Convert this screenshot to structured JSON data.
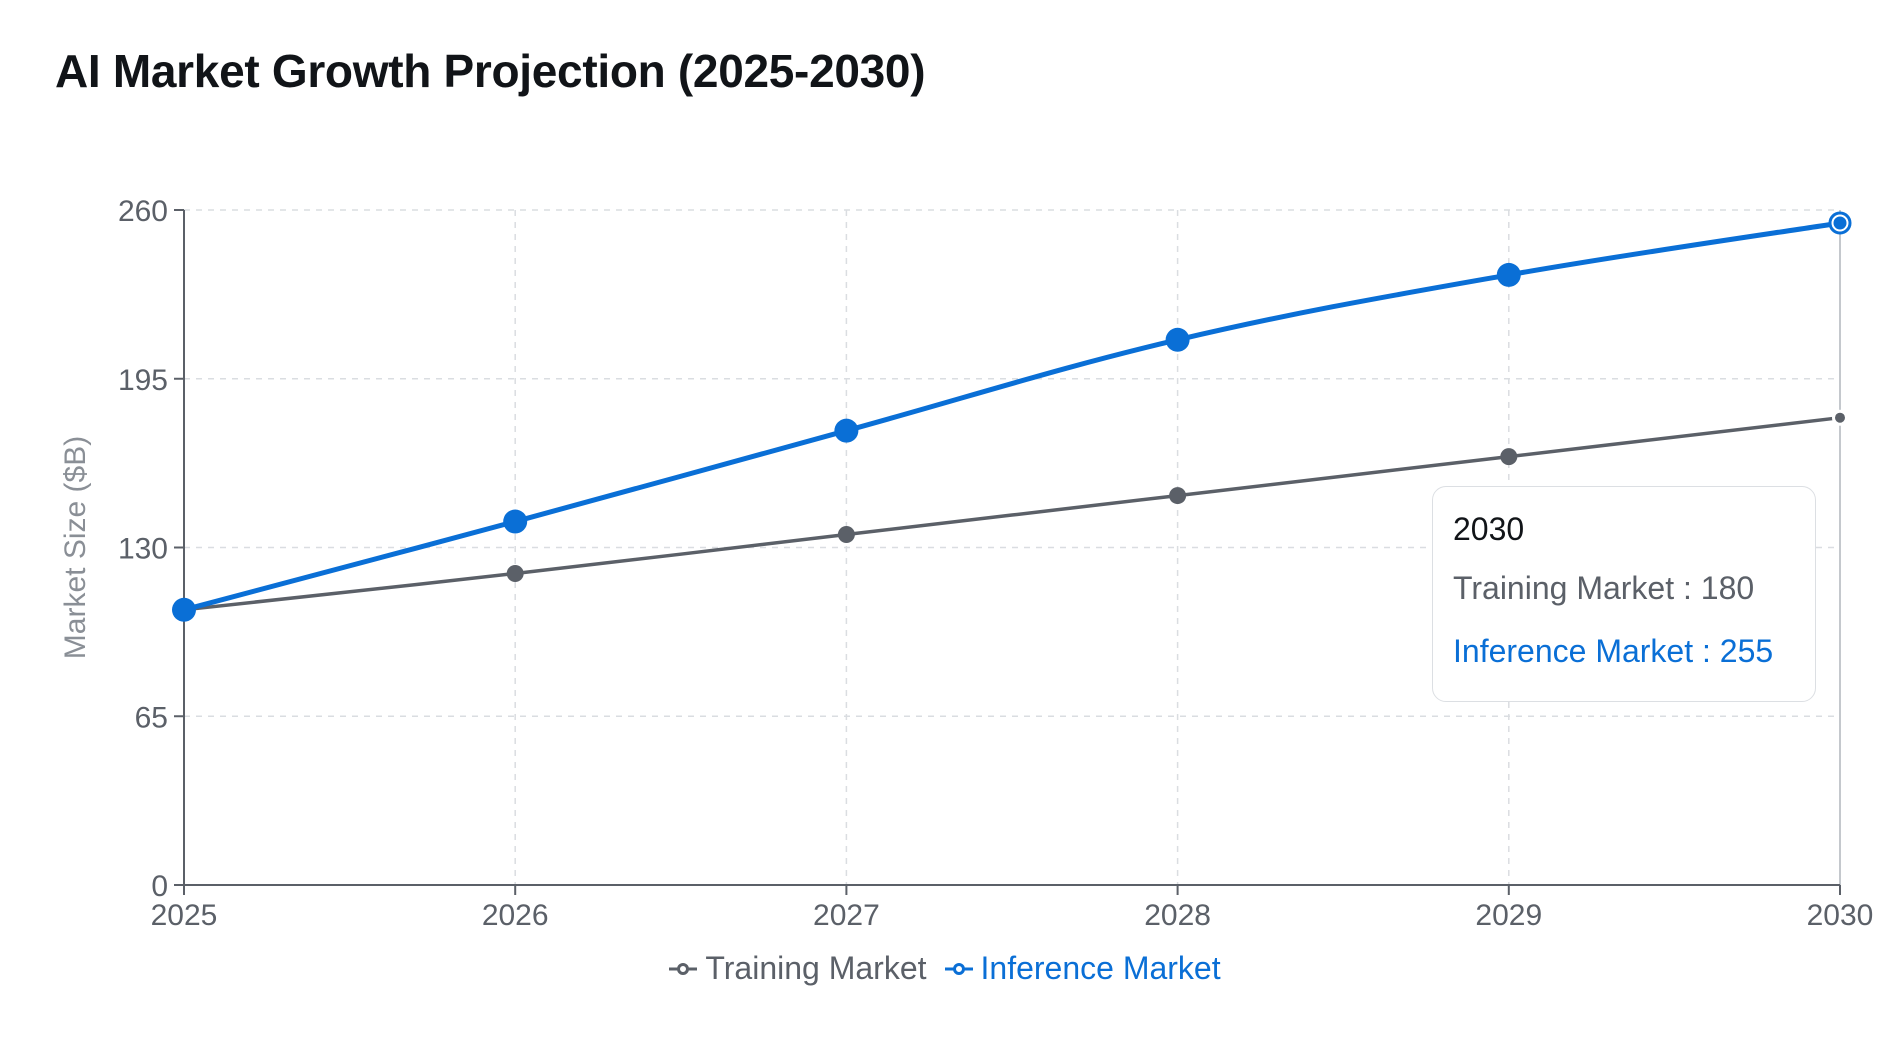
{
  "chart_data": {
    "type": "line",
    "title": "AI Market Growth Projection (2025-2030)",
    "xlabel": "",
    "ylabel": "Market Size ($B)",
    "categories": [
      "2025",
      "2026",
      "2027",
      "2028",
      "2029",
      "2030"
    ],
    "series": [
      {
        "name": "Training Market",
        "color": "#5b6068",
        "values": [
          106,
          120,
          135,
          150,
          165,
          180
        ]
      },
      {
        "name": "Inference Market",
        "color": "#0a6fd6",
        "values": [
          106,
          140,
          175,
          210,
          235,
          255
        ]
      }
    ],
    "yticks": [
      0,
      65,
      130,
      195,
      260
    ],
    "ylim": [
      0,
      260
    ],
    "grid": true,
    "legend": "bottom-center",
    "tooltip": {
      "title": "2030",
      "rows": [
        {
          "label": "Training Market : 180",
          "color": "#5b6068"
        },
        {
          "label": "Inference Market : 255",
          "color": "#0a6fd6"
        }
      ]
    }
  }
}
